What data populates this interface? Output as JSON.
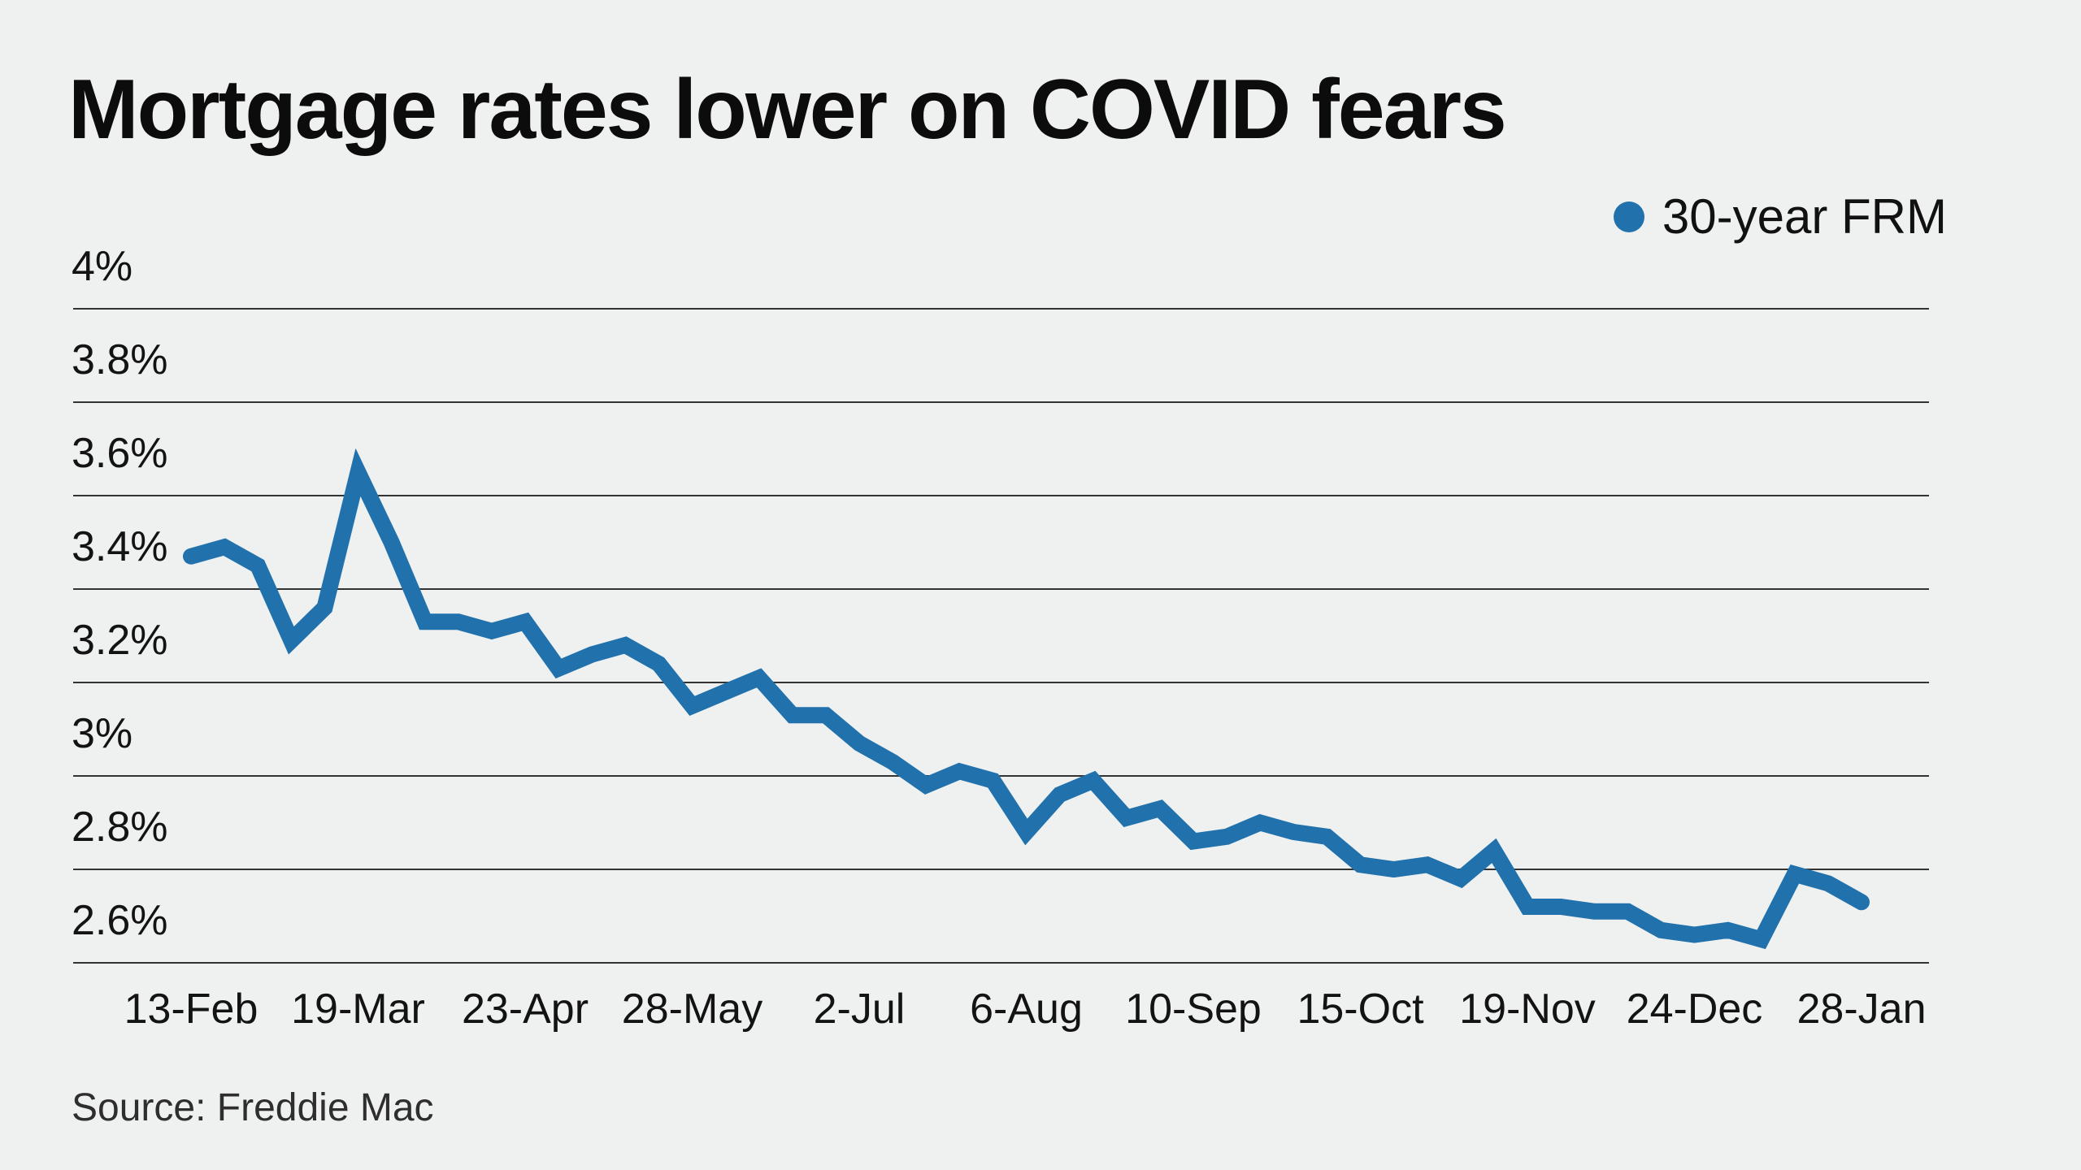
{
  "title": "Mortgage rates lower on COVID fears",
  "legend": {
    "label": "30-year FRM",
    "marker": "circle"
  },
  "source": "Source: Freddie Mac",
  "colors": {
    "background": "#eff1f0",
    "line": "#2171ad",
    "grid": "#333333",
    "text": "#131313",
    "title_text": "#0c0c0c",
    "source_text": "#2e2e2e"
  },
  "chart_data": {
    "type": "line",
    "title": "Mortgage rates lower on COVID fears",
    "source": "Source: Freddie Mac",
    "xlabel": "",
    "ylabel": "",
    "grid": "horizontal",
    "legend_position": "top-right",
    "ylim": [
      2.6,
      4.0
    ],
    "y_ticks": [
      4.0,
      3.8,
      3.6,
      3.4,
      3.2,
      3.0,
      2.8,
      2.6
    ],
    "y_tick_labels": [
      "4%",
      "3.8%",
      "3.6%",
      "3.4%",
      "3.2%",
      "3%",
      "2.8%",
      "2.6%"
    ],
    "x_tick_labels": [
      "13-Feb",
      "19-Mar",
      "23-Apr",
      "28-May",
      "2-Jul",
      "6-Aug",
      "10-Sep",
      "15-Oct",
      "19-Nov",
      "24-Dec",
      "28-Jan"
    ],
    "x_tick_every": 5,
    "series": [
      {
        "name": "30-year FRM",
        "x": [
          "13-Feb",
          "20-Feb",
          "27-Feb",
          "5-Mar",
          "12-Mar",
          "19-Mar",
          "26-Mar",
          "2-Apr",
          "9-Apr",
          "16-Apr",
          "23-Apr",
          "30-Apr",
          "7-May",
          "14-May",
          "21-May",
          "28-May",
          "4-Jun",
          "11-Jun",
          "18-Jun",
          "25-Jun",
          "2-Jul",
          "9-Jul",
          "16-Jul",
          "23-Jul",
          "30-Jul",
          "6-Aug",
          "13-Aug",
          "20-Aug",
          "27-Aug",
          "3-Sep",
          "10-Sep",
          "17-Sep",
          "24-Sep",
          "1-Oct",
          "8-Oct",
          "15-Oct",
          "22-Oct",
          "29-Oct",
          "5-Nov",
          "12-Nov",
          "19-Nov",
          "26-Nov",
          "3-Dec",
          "10-Dec",
          "17-Dec",
          "24-Dec",
          "31-Dec",
          "7-Jan",
          "14-Jan",
          "21-Jan",
          "28-Jan"
        ],
        "values": [
          3.47,
          3.49,
          3.45,
          3.29,
          3.36,
          3.65,
          3.5,
          3.33,
          3.33,
          3.31,
          3.33,
          3.23,
          3.26,
          3.28,
          3.24,
          3.15,
          3.18,
          3.21,
          3.13,
          3.13,
          3.07,
          3.03,
          2.98,
          3.01,
          2.99,
          2.88,
          2.96,
          2.99,
          2.91,
          2.93,
          2.86,
          2.87,
          2.9,
          2.88,
          2.87,
          2.81,
          2.8,
          2.81,
          2.78,
          2.84,
          2.72,
          2.72,
          2.71,
          2.71,
          2.67,
          2.66,
          2.67,
          2.65,
          2.79,
          2.77,
          2.73
        ]
      }
    ]
  }
}
